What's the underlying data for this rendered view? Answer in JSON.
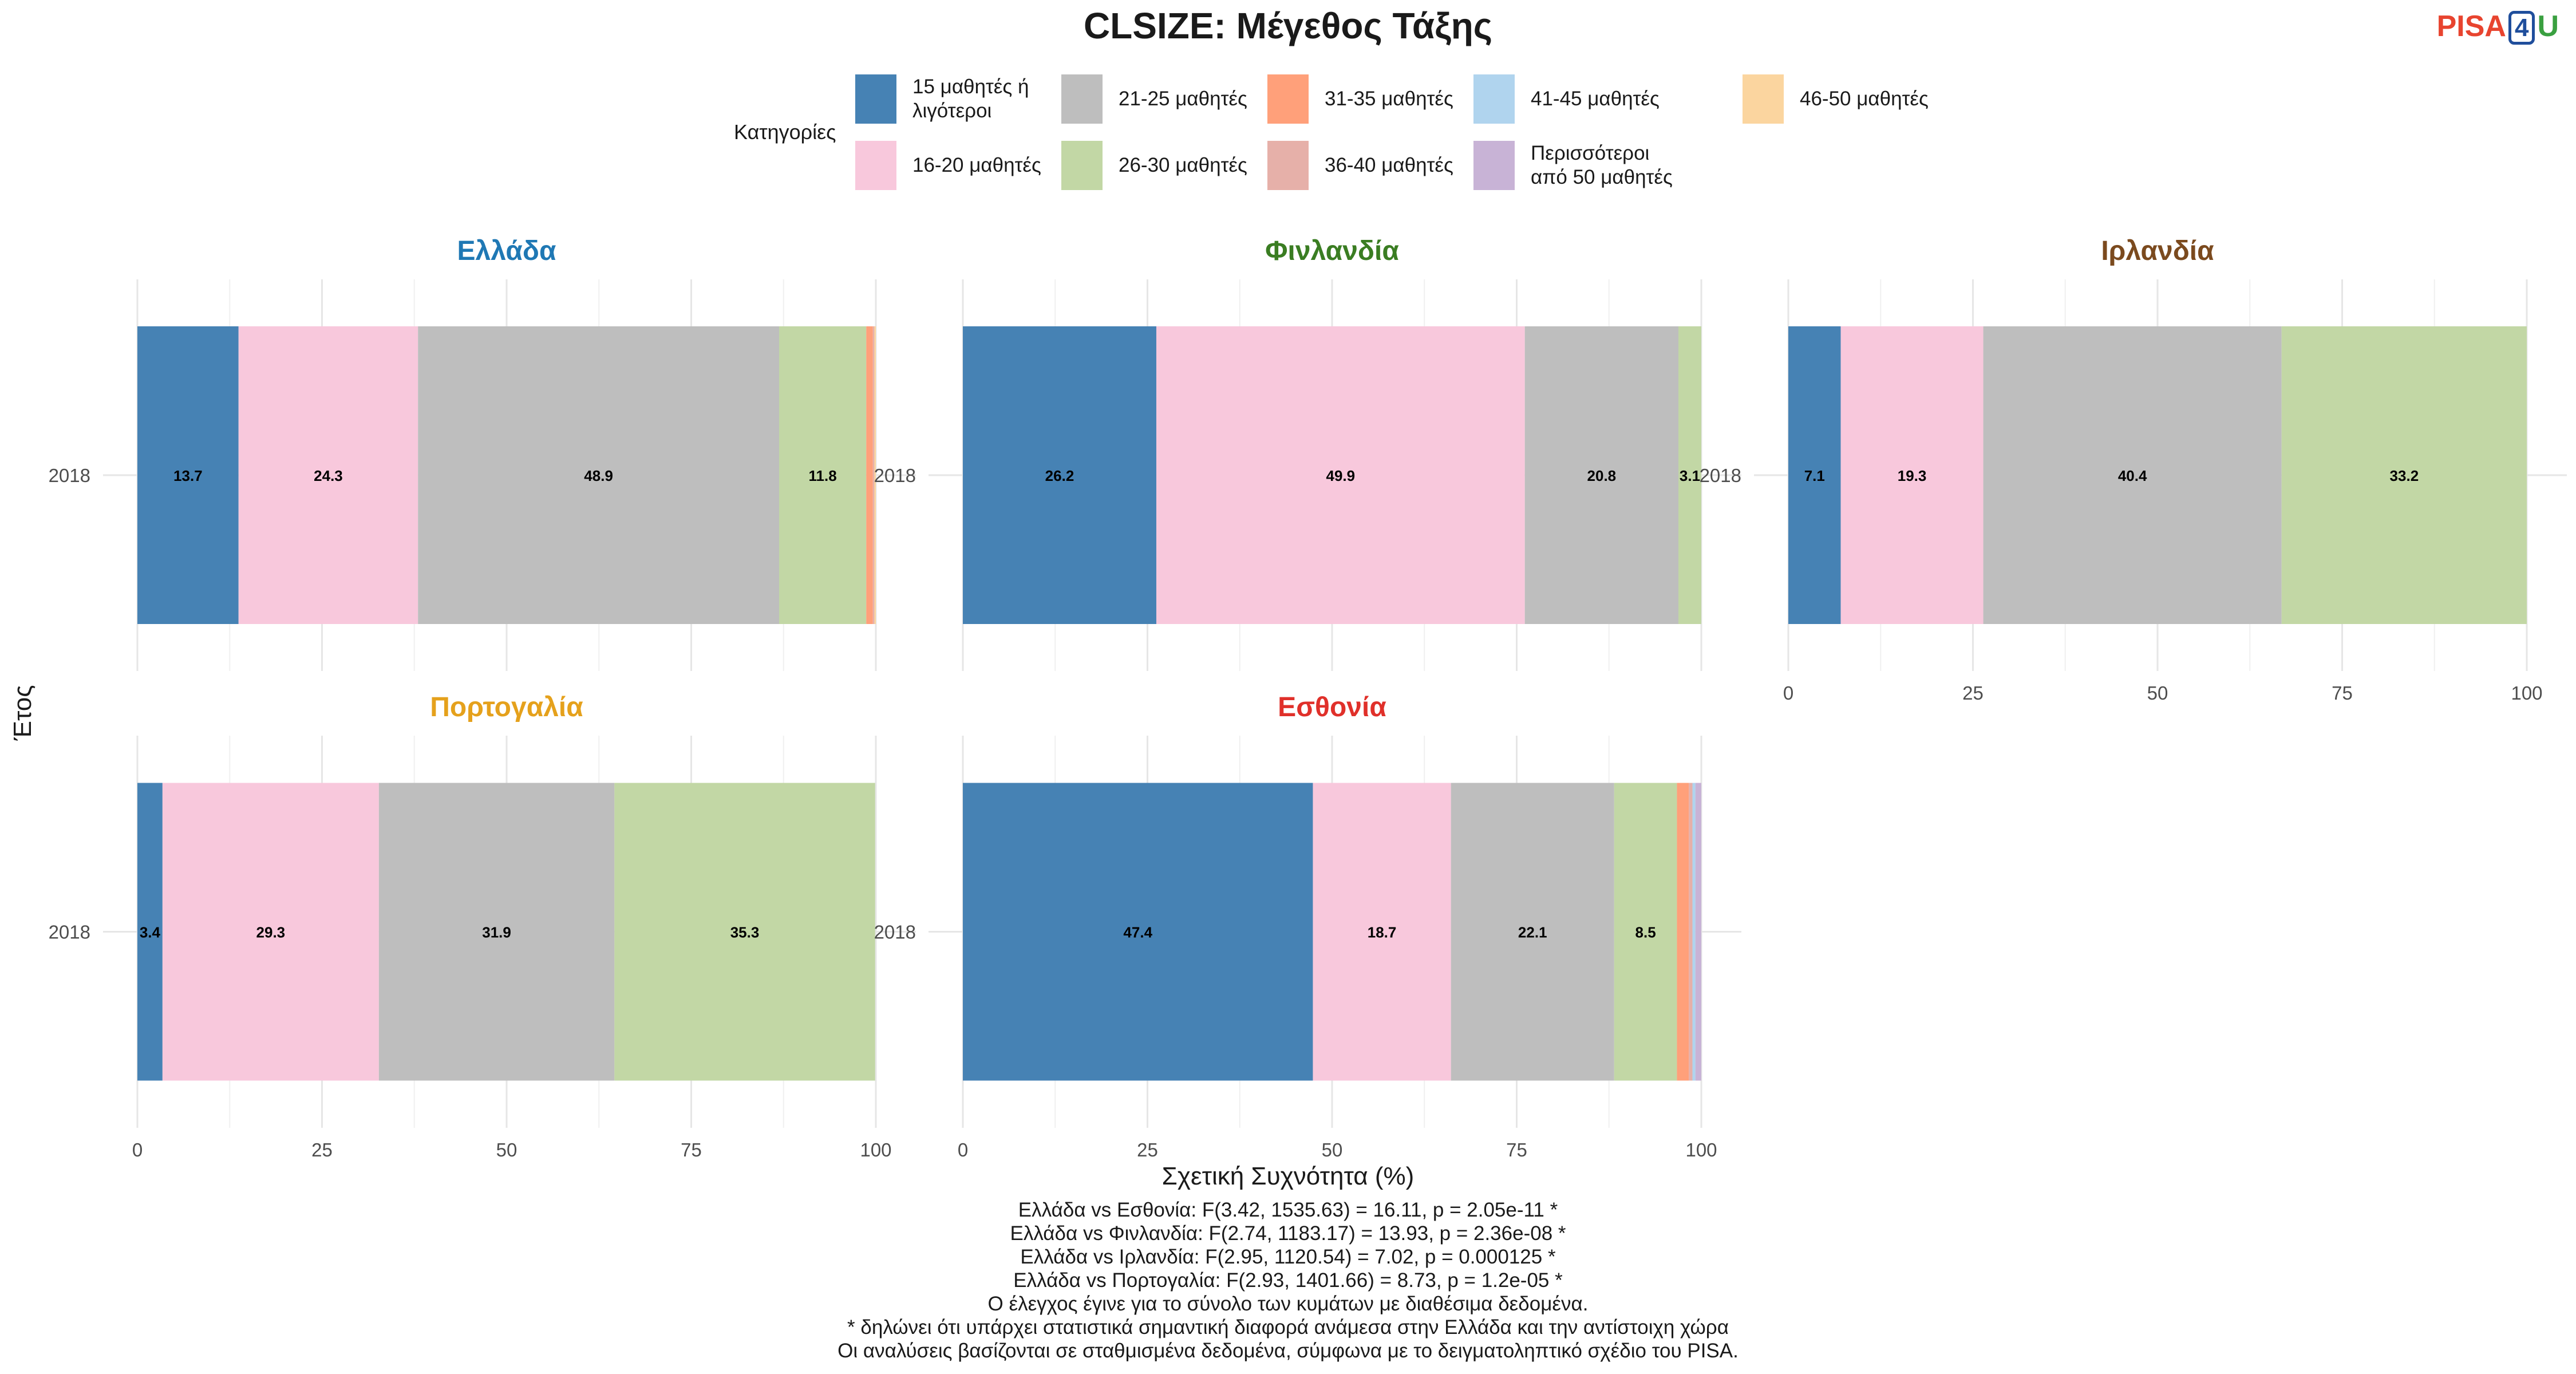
{
  "title": "CLSIZE: Μέγεθος Τάξης",
  "logo": {
    "part1": "PISA",
    "part2": "4",
    "part3": "U"
  },
  "legend": {
    "title": "Κατηγορίες",
    "items": [
      {
        "label": "15 μαθητές ή λιγότεροι",
        "color": "#4682b4"
      },
      {
        "label": "16-20 μαθητές",
        "color": "#f8c8dc"
      },
      {
        "label": "21-25 μαθητές",
        "color": "#bebebe"
      },
      {
        "label": "26-30 μαθητές",
        "color": "#c2d7a5"
      },
      {
        "label": "31-35 μαθητές",
        "color": "#ffa07a"
      },
      {
        "label": "36-40 μαθητές",
        "color": "#e6b0a9"
      },
      {
        "label": "41-45 μαθητές",
        "color": "#b0d4ee"
      },
      {
        "label": "Περισσότεροι από 50 μαθητές",
        "color": "#c8b3d6"
      },
      {
        "label": "46-50 μαθητές",
        "color": "#fbd59f"
      }
    ]
  },
  "chart_data": {
    "type": "bar",
    "orientation": "horizontal-stacked",
    "xlabel": "Σχετική Συχνότητα (%)",
    "ylabel": "Έτος",
    "xlim": [
      0,
      100
    ],
    "xticks": [
      "0",
      "25",
      "50",
      "75",
      "100"
    ],
    "grid": true,
    "panels": [
      {
        "country": "Ελλάδα",
        "color": "#1f78b4",
        "year": "2018",
        "segments": [
          {
            "category": "15 μαθητές ή λιγότεροι",
            "value": 13.7,
            "label": "13.7"
          },
          {
            "category": "16-20 μαθητές",
            "value": 24.3,
            "label": "24.3"
          },
          {
            "category": "21-25 μαθητές",
            "value": 48.9,
            "label": "48.9"
          },
          {
            "category": "26-30 μαθητές",
            "value": 11.8,
            "label": "11.8"
          },
          {
            "category": "31-35 μαθητές",
            "value": 0.9,
            "label": ""
          },
          {
            "category": "36-40 μαθητές",
            "value": 0.2,
            "label": ""
          },
          {
            "category": "46-50 μαθητές",
            "value": 0.2,
            "label": ""
          }
        ]
      },
      {
        "country": "Φινλανδία",
        "color": "#3a7d22",
        "year": "2018",
        "segments": [
          {
            "category": "15 μαθητές ή λιγότεροι",
            "value": 26.2,
            "label": "26.2"
          },
          {
            "category": "16-20 μαθητές",
            "value": 49.9,
            "label": "49.9"
          },
          {
            "category": "21-25 μαθητές",
            "value": 20.8,
            "label": "20.8"
          },
          {
            "category": "26-30 μαθητές",
            "value": 3.1,
            "label": "3.1"
          }
        ]
      },
      {
        "country": "Ιρλανδία",
        "color": "#7b4a1e",
        "year": "2018",
        "segments": [
          {
            "category": "15 μαθητές ή λιγότεροι",
            "value": 7.1,
            "label": "7.1"
          },
          {
            "category": "16-20 μαθητές",
            "value": 19.3,
            "label": "19.3"
          },
          {
            "category": "21-25 μαθητές",
            "value": 40.4,
            "label": "40.4"
          },
          {
            "category": "26-30 μαθητές",
            "value": 33.2,
            "label": "33.2"
          }
        ]
      },
      {
        "country": "Πορτογαλία",
        "color": "#e5a11c",
        "year": "2018",
        "segments": [
          {
            "category": "15 μαθητές ή λιγότεροι",
            "value": 3.4,
            "label": "3.4"
          },
          {
            "category": "16-20 μαθητές",
            "value": 29.3,
            "label": "29.3"
          },
          {
            "category": "21-25 μαθητές",
            "value": 31.9,
            "label": "31.9"
          },
          {
            "category": "26-30 μαθητές",
            "value": 35.3,
            "label": "35.3"
          }
        ]
      },
      {
        "country": "Εσθονία",
        "color": "#e0302a",
        "year": "2018",
        "segments": [
          {
            "category": "15 μαθητές ή λιγότεροι",
            "value": 47.4,
            "label": "47.4"
          },
          {
            "category": "16-20 μαθητές",
            "value": 18.7,
            "label": "18.7"
          },
          {
            "category": "21-25 μαθητές",
            "value": 22.1,
            "label": "22.1"
          },
          {
            "category": "26-30 μαθητές",
            "value": 8.5,
            "label": "8.5"
          },
          {
            "category": "31-35 μαθητές",
            "value": 1.6,
            "label": ""
          },
          {
            "category": "36-40 μαθητές",
            "value": 0.5,
            "label": ""
          },
          {
            "category": "41-45 μαθητές",
            "value": 0.4,
            "label": ""
          },
          {
            "category": "Περισσότεροι από 50 μαθητές",
            "value": 0.8,
            "label": ""
          }
        ]
      }
    ]
  },
  "notes": [
    "Ελλάδα vs Εσθονία: F(3.42, 1535.63) = 16.11, p = 2.05e-11 *",
    "Ελλάδα vs Φινλανδία: F(2.74, 1183.17) = 13.93, p = 2.36e-08 *",
    "Ελλάδα vs Ιρλανδία: F(2.95, 1120.54) = 7.02, p = 0.000125 *",
    "Ελλάδα vs Πορτογαλία: F(2.93, 1401.66) = 8.73, p = 1.2e-05 *",
    "Ο έλεγχος έγινε για το σύνολο των κυμάτων με διαθέσιμα δεδομένα.",
    "* δηλώνει ότι υπάρχει στατιστικά σημαντική διαφορά ανάμεσα στην Ελλάδα και την αντίστοιχη χώρα",
    "Οι αναλύσεις βασίζονται σε σταθμισμένα δεδομένα, σύμφωνα με το δειγματοληπτικό σχέδιο του PISA."
  ]
}
